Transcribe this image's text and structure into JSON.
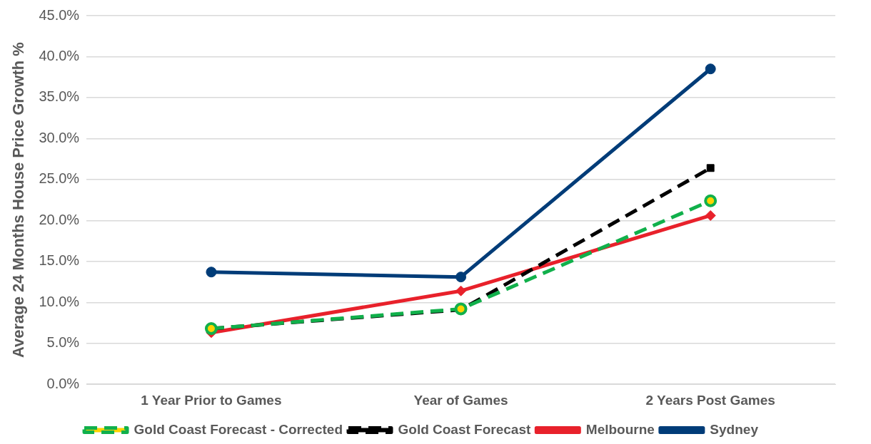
{
  "chart_data": {
    "type": "line",
    "ylabel": "Average 24 Months House Price Growth %",
    "categories": [
      "1 Year Prior to Games",
      "Year of Games",
      "2 Years Post Games"
    ],
    "series": [
      {
        "name": "Sydney",
        "color": "#003c78",
        "values": [
          13.7,
          13.1,
          38.5
        ],
        "marker": "circle",
        "line_style": "solid"
      },
      {
        "name": "Melbourne",
        "color": "#e8212b",
        "values": [
          6.3,
          11.4,
          20.6
        ],
        "marker": "diamond",
        "line_style": "solid"
      },
      {
        "name": "Gold Coast Forecast",
        "color": "#000000",
        "values": [
          6.8,
          9.1,
          26.4
        ],
        "marker": "square",
        "line_style": "dashed"
      },
      {
        "name": "Gold Coast Forecast - Corrected",
        "color": "#11b04b",
        "values": [
          6.8,
          9.2,
          22.4
        ],
        "marker": "circle",
        "line_style": "dashed"
      }
    ],
    "ylim": [
      0,
      45
    ],
    "yticks": [
      {
        "value": 0,
        "label": "0.0%"
      },
      {
        "value": 5,
        "label": "5.0%"
      },
      {
        "value": 10,
        "label": "10.0%"
      },
      {
        "value": 15,
        "label": "15.0%"
      },
      {
        "value": 20,
        "label": "20.0%"
      },
      {
        "value": 25,
        "label": "25.0%"
      },
      {
        "value": 30,
        "label": "30.0%"
      },
      {
        "value": 35,
        "label": "35.0%"
      },
      {
        "value": 40,
        "label": "40.0%"
      },
      {
        "value": 45,
        "label": "45.0%"
      }
    ],
    "grid": "y",
    "legend": "bottom"
  }
}
